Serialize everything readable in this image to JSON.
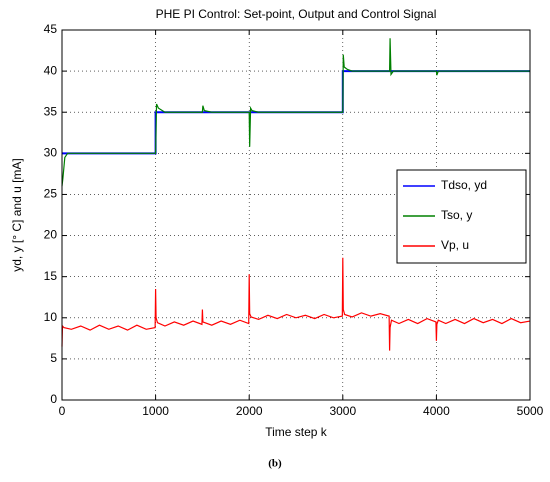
{
  "chart_data": {
    "type": "line",
    "title": "PHE PI Control: Set-point, Output and Control Signal",
    "xlabel": "Time step k",
    "ylabel": "yd, y [° C] and u [mA]",
    "caption": "(b)",
    "xlim": [
      0,
      5000
    ],
    "xticks": [
      0,
      1000,
      2000,
      3000,
      4000,
      5000
    ],
    "ylim": [
      0,
      45
    ],
    "yticks": [
      0,
      5,
      10,
      15,
      20,
      25,
      30,
      35,
      40,
      45
    ],
    "grid": true,
    "legend": "right",
    "series": [
      {
        "name": "Tdso, yd",
        "color": "#0000ff",
        "x": [
          0,
          1000,
          1000,
          3000,
          3000,
          5000
        ],
        "values": [
          30,
          30,
          35,
          35,
          40,
          40
        ]
      },
      {
        "name": "Tso, y",
        "color": "#008000",
        "x": [
          0,
          10,
          30,
          60,
          100,
          1000,
          1005,
          1010,
          1030,
          1100,
          1500,
          1505,
          1520,
          1600,
          2000,
          2005,
          2015,
          2030,
          2100,
          3000,
          3005,
          3015,
          3050,
          3100,
          3500,
          3505,
          3515,
          3540,
          3600,
          4000,
          4005,
          4020,
          5000
        ],
        "values": [
          26,
          27,
          29.5,
          30,
          30,
          30,
          33,
          36,
          35.5,
          35,
          35,
          35.8,
          35.2,
          35,
          35,
          30.8,
          35.5,
          35.2,
          35,
          35,
          42,
          40.5,
          40.2,
          40,
          40,
          44,
          39.6,
          40,
          40,
          40,
          39.5,
          40,
          40
        ]
      },
      {
        "name": "Vp, u",
        "color": "#ff0000",
        "x": [
          0,
          5,
          20,
          100,
          200,
          300,
          400,
          500,
          600,
          700,
          800,
          900,
          995,
          1000,
          1005,
          1020,
          1100,
          1200,
          1300,
          1400,
          1495,
          1500,
          1505,
          1600,
          1700,
          1800,
          1900,
          1995,
          2000,
          2005,
          2020,
          2100,
          2200,
          2300,
          2400,
          2500,
          2600,
          2700,
          2800,
          2900,
          2995,
          3000,
          3005,
          3020,
          3100,
          3200,
          3300,
          3400,
          3495,
          3500,
          3505,
          3520,
          3600,
          3700,
          3800,
          3900,
          3995,
          4000,
          4005,
          4020,
          4100,
          4200,
          4300,
          4400,
          4500,
          4600,
          4700,
          4800,
          4900,
          5000
        ],
        "values": [
          6.5,
          9,
          8.8,
          8.6,
          9.0,
          8.5,
          9.1,
          8.6,
          9.0,
          8.5,
          9.1,
          8.6,
          8.8,
          13.5,
          10,
          9.4,
          9.0,
          9.5,
          9.1,
          9.6,
          9.2,
          11,
          9.5,
          9.1,
          9.6,
          9.2,
          9.7,
          9.3,
          15.3,
          10.5,
          10.1,
          9.8,
          10.3,
          9.9,
          10.4,
          10.0,
          10.3,
          9.9,
          10.4,
          10.0,
          10.2,
          17.3,
          11,
          10.4,
          10.1,
          10.6,
          10.2,
          10.5,
          10.2,
          6,
          8.8,
          9.7,
          9.3,
          9.8,
          9.3,
          9.9,
          9.5,
          7.2,
          9.2,
          9.7,
          9.3,
          9.8,
          9.3,
          9.9,
          9.4,
          9.8,
          9.3,
          9.9,
          9.4,
          9.6
        ]
      }
    ]
  }
}
